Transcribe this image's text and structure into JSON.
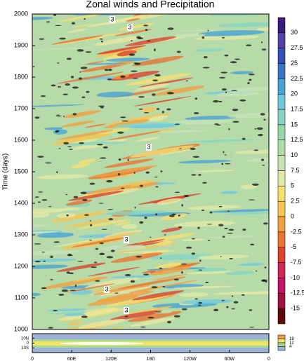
{
  "chart_data": {
    "type": "contour",
    "title": "Zonal winds and Precipitation",
    "ylabel": "Time (days)",
    "ylim": [
      1000,
      2000
    ],
    "yticks": [
      1000,
      1100,
      1200,
      1300,
      1400,
      1500,
      1600,
      1700,
      1800,
      1900,
      2000
    ],
    "xlim": [
      0,
      360
    ],
    "xticks": [
      0,
      {
        "value": 60,
        "label": "60E"
      },
      {
        "value": 120,
        "label": "120E"
      },
      180,
      {
        "value": 240,
        "label": "120W"
      },
      {
        "value": 300,
        "label": "60W"
      },
      {
        "value": 360,
        "label": "0"
      }
    ],
    "colorbar": {
      "levels": [
        30,
        27.5,
        25,
        22.5,
        20,
        17.5,
        15,
        12.5,
        10,
        7.5,
        5,
        2.5,
        0,
        -2.5,
        -5,
        -7.5,
        -10,
        -12.5,
        -15
      ],
      "colors": [
        "#3b1c7c",
        "#5540a8",
        "#3350b4",
        "#3a74c4",
        "#4aa2d4",
        "#72c8e2",
        "#84d6c4",
        "#96d8a6",
        "#aedca2",
        "#c6e2b6",
        "#e2e8a8",
        "#f6e070",
        "#f8c454",
        "#f2a040",
        "#ea7432",
        "#dc4430",
        "#d22656",
        "#c21466",
        "#a01040",
        "#5e0a08"
      ]
    },
    "contour_labels": [
      "3",
      "3",
      "3",
      "3",
      "3",
      "3"
    ],
    "panel": {
      "ylim": [
        -20,
        20
      ],
      "yticks": [
        {
          "value": 10,
          "label": "10N"
        },
        0,
        {
          "value": -10,
          "label": "10S"
        }
      ],
      "colorbar": {
        "levels": [
          18,
          12,
          4
        ],
        "colors": [
          "#f0a040",
          "#f2e266",
          "#a6da92",
          "#9cb2d8"
        ]
      }
    }
  }
}
